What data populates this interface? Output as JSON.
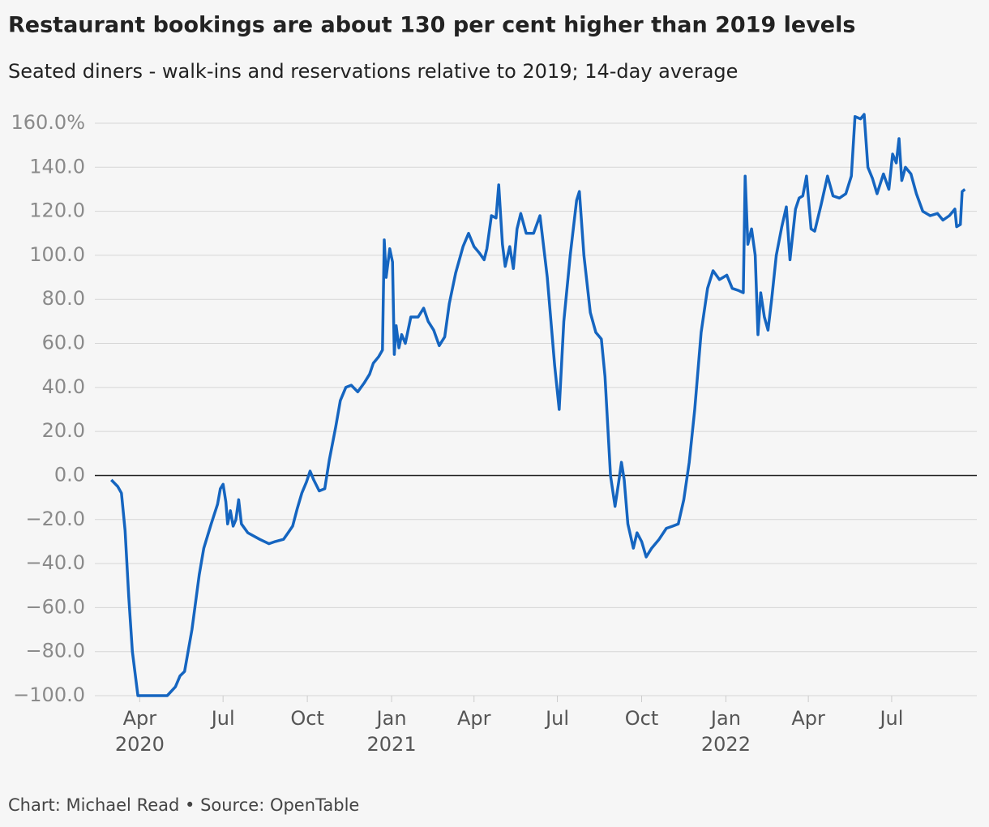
{
  "chart_data": {
    "type": "line",
    "title": "Restaurant bookings are about 130 per cent higher than 2019 levels",
    "subtitle": "Seated diners - walk-ins and reservations relative to 2019; 14-day average",
    "footer": "Chart: Michael Read • Source: OpenTable",
    "xlim": [
      "2020-02-12",
      "2022-10-02"
    ],
    "ylim": [
      -100,
      165
    ],
    "xticks": [
      {
        "value": "2020-04",
        "label": "Apr",
        "year": "2020"
      },
      {
        "value": "2020-07",
        "label": "Jul"
      },
      {
        "value": "2020-10",
        "label": "Oct"
      },
      {
        "value": "2021-01",
        "label": "Jan",
        "year": "2021"
      },
      {
        "value": "2021-04",
        "label": "Apr"
      },
      {
        "value": "2021-07",
        "label": "Jul"
      },
      {
        "value": "2021-10",
        "label": "Oct"
      },
      {
        "value": "2022-01",
        "label": "Jan",
        "year": "2022"
      },
      {
        "value": "2022-04",
        "label": "Apr"
      },
      {
        "value": "2022-07",
        "label": "Jul"
      }
    ],
    "yticks": [
      {
        "value": 160,
        "label": "160.0%"
      },
      {
        "value": 140,
        "label": "140.0"
      },
      {
        "value": 120,
        "label": "120.0"
      },
      {
        "value": 100,
        "label": "100.0"
      },
      {
        "value": 80,
        "label": "80.0"
      },
      {
        "value": 60,
        "label": "60.0"
      },
      {
        "value": 40,
        "label": "40.0"
      },
      {
        "value": 20,
        "label": "20.0"
      },
      {
        "value": 0,
        "label": "0.0"
      },
      {
        "value": -20,
        "label": "−20.0"
      },
      {
        "value": -40,
        "label": "−40.0"
      },
      {
        "value": -60,
        "label": "−60.0"
      },
      {
        "value": -80,
        "label": "−80.0"
      },
      {
        "value": -100,
        "label": "−100.0"
      }
    ],
    "grid": true,
    "x": [
      "2020-03-01",
      "2020-03-08",
      "2020-03-12",
      "2020-03-16",
      "2020-03-20",
      "2020-03-24",
      "2020-03-30",
      "2020-04-15",
      "2020-05-01",
      "2020-05-10",
      "2020-05-15",
      "2020-05-20",
      "2020-05-28",
      "2020-06-05",
      "2020-06-10",
      "2020-06-18",
      "2020-06-25",
      "2020-06-28",
      "2020-07-01",
      "2020-07-04",
      "2020-07-06",
      "2020-07-09",
      "2020-07-12",
      "2020-07-15",
      "2020-07-18",
      "2020-07-21",
      "2020-07-28",
      "2020-08-10",
      "2020-08-20",
      "2020-08-27",
      "2020-09-05",
      "2020-09-10",
      "2020-09-15",
      "2020-09-20",
      "2020-09-25",
      "2020-09-30",
      "2020-10-04",
      "2020-10-08",
      "2020-10-14",
      "2020-10-20",
      "2020-10-25",
      "2020-11-01",
      "2020-11-06",
      "2020-11-12",
      "2020-11-18",
      "2020-11-25",
      "2020-12-02",
      "2020-12-08",
      "2020-12-12",
      "2020-12-18",
      "2020-12-22",
      "2020-12-24",
      "2020-12-26",
      "2020-12-30",
      "2021-01-02",
      "2021-01-04",
      "2021-01-06",
      "2021-01-09",
      "2021-01-12",
      "2021-01-16",
      "2021-01-22",
      "2021-01-30",
      "2021-02-05",
      "2021-02-10",
      "2021-02-16",
      "2021-02-22",
      "2021-02-28",
      "2021-03-05",
      "2021-03-12",
      "2021-03-20",
      "2021-03-26",
      "2021-04-01",
      "2021-04-07",
      "2021-04-12",
      "2021-04-15",
      "2021-04-20",
      "2021-04-25",
      "2021-04-28",
      "2021-05-02",
      "2021-05-05",
      "2021-05-10",
      "2021-05-14",
      "2021-05-18",
      "2021-05-22",
      "2021-05-28",
      "2021-06-05",
      "2021-06-12",
      "2021-06-20",
      "2021-06-28",
      "2021-07-03",
      "2021-07-08",
      "2021-07-15",
      "2021-07-22",
      "2021-07-25",
      "2021-07-30",
      "2021-08-06",
      "2021-08-12",
      "2021-08-18",
      "2021-08-22",
      "2021-08-28",
      "2021-09-02",
      "2021-09-06",
      "2021-09-09",
      "2021-09-12",
      "2021-09-16",
      "2021-09-22",
      "2021-09-26",
      "2021-10-01",
      "2021-10-06",
      "2021-10-12",
      "2021-10-20",
      "2021-10-28",
      "2021-11-04",
      "2021-11-10",
      "2021-11-16",
      "2021-11-22",
      "2021-11-28",
      "2021-12-05",
      "2021-12-12",
      "2021-12-18",
      "2021-12-25",
      "2022-01-02",
      "2022-01-08",
      "2022-01-15",
      "2022-01-20",
      "2022-01-22",
      "2022-01-25",
      "2022-01-29",
      "2022-02-02",
      "2022-02-05",
      "2022-02-08",
      "2022-02-12",
      "2022-02-16",
      "2022-02-20",
      "2022-02-25",
      "2022-03-03",
      "2022-03-08",
      "2022-03-12",
      "2022-03-18",
      "2022-03-22",
      "2022-03-26",
      "2022-03-30",
      "2022-04-04",
      "2022-04-08",
      "2022-04-15",
      "2022-04-22",
      "2022-04-28",
      "2022-05-05",
      "2022-05-12",
      "2022-05-18",
      "2022-05-22",
      "2022-05-28",
      "2022-06-01",
      "2022-06-05",
      "2022-06-10",
      "2022-06-15",
      "2022-06-22",
      "2022-06-28",
      "2022-07-02",
      "2022-07-06",
      "2022-07-09",
      "2022-07-12",
      "2022-07-16",
      "2022-07-22",
      "2022-07-28",
      "2022-08-04",
      "2022-08-12",
      "2022-08-20",
      "2022-08-26",
      "2022-09-02",
      "2022-09-08",
      "2022-09-10",
      "2022-09-14",
      "2022-09-16",
      "2022-09-19"
    ],
    "series": [
      {
        "color": "#1565c0",
        "values": [
          -2,
          -5,
          -8,
          -25,
          -55,
          -80,
          -100,
          -100,
          -100,
          -96,
          -91,
          -89,
          -70,
          -45,
          -33,
          -22,
          -13,
          -6,
          -4,
          -12,
          -22,
          -16,
          -23,
          -20,
          -11,
          -22,
          -26,
          -29,
          -31,
          -30,
          -29,
          -26,
          -23,
          -15,
          -8,
          -3,
          2,
          -2,
          -7,
          -6,
          7,
          22,
          34,
          40,
          41,
          38,
          42,
          46,
          51,
          54,
          57,
          107,
          90,
          103,
          97,
          55,
          68,
          58,
          64,
          60,
          72,
          72,
          76,
          70,
          66,
          59,
          63,
          78,
          92,
          104,
          110,
          104,
          101,
          98,
          103,
          118,
          117,
          132,
          105,
          95,
          104,
          94,
          112,
          119,
          110,
          110,
          118,
          90,
          50,
          30,
          70,
          100,
          125,
          129,
          100,
          74,
          65,
          62,
          45,
          0,
          -14,
          -3,
          6,
          -2,
          -22,
          -33,
          -26,
          -30,
          -37,
          -33,
          -29,
          -24,
          -23,
          -22,
          -11,
          6,
          30,
          65,
          85,
          93,
          89,
          91,
          85,
          84,
          83,
          136,
          105,
          112,
          100,
          64,
          83,
          72,
          66,
          80,
          100,
          113,
          122,
          98,
          121,
          126,
          127,
          136,
          112,
          111,
          123,
          136,
          127,
          126,
          128,
          136,
          163,
          162,
          164,
          140,
          135,
          128,
          137,
          130,
          146,
          142,
          153,
          134,
          140,
          137,
          128,
          120,
          118,
          119,
          116,
          118,
          121,
          113,
          114,
          129,
          130
        ]
      }
    ]
  }
}
